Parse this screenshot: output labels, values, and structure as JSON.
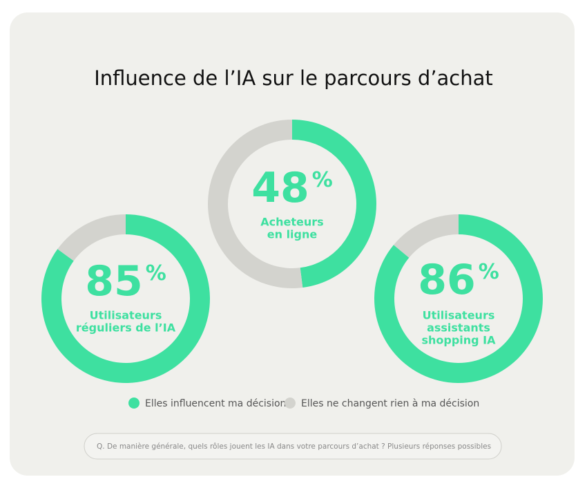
{
  "title": "Influence de l’IA sur le parcours d’achat",
  "legend": [
    {
      "name": "Elles influencent ma décision",
      "color": "#3ee0a0"
    },
    {
      "name": "Elles ne changent rien à ma décision",
      "color": "#d3d3ce"
    }
  ],
  "chart_data": [
    {
      "type": "donut",
      "label": [
        "Utilisateurs",
        "réguliers de l’IA"
      ],
      "values": [
        85,
        15
      ],
      "value_labels": [
        "85%",
        null
      ]
    },
    {
      "type": "donut",
      "label": [
        "Acheteurs",
        "en ligne"
      ],
      "values": [
        48,
        52
      ],
      "value_labels": [
        "48%",
        null
      ]
    },
    {
      "type": "donut",
      "label": [
        "Utilisateurs",
        "assistants",
        "shopping IA"
      ],
      "values": [
        86,
        14
      ],
      "value_labels": [
        "86%",
        null
      ]
    }
  ],
  "footnote": "Q. De manière générale, quels rôles jouent les IA dans votre parcours d’achat ? Plusieurs réponses possibles"
}
